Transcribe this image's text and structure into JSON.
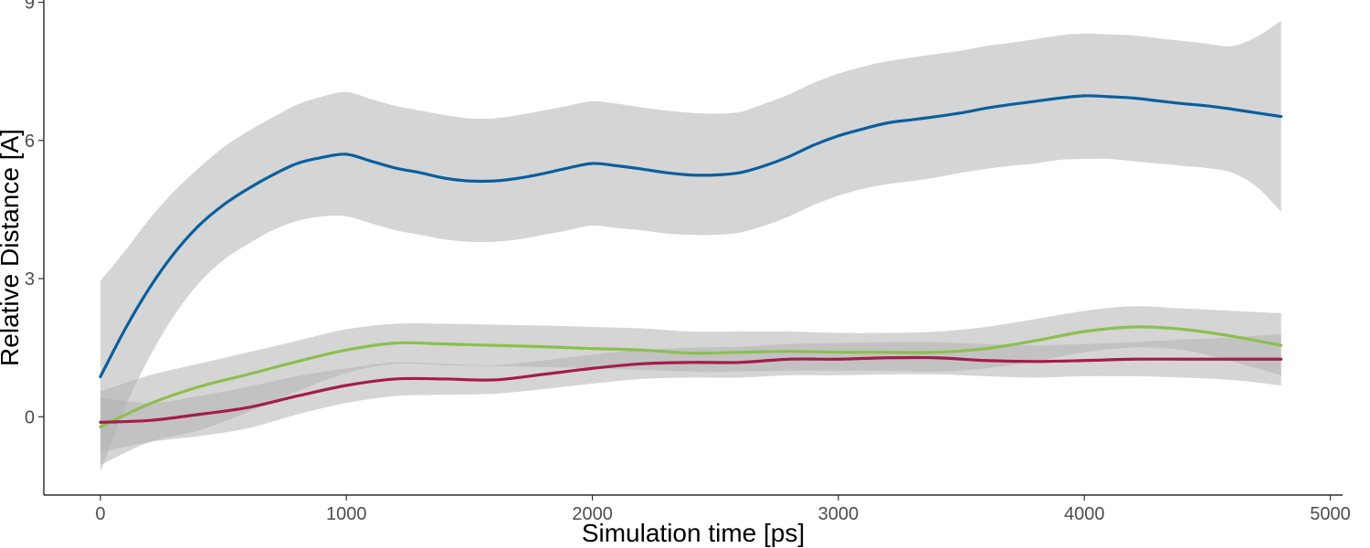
{
  "chart_data": {
    "type": "line",
    "title": "",
    "xlabel": "Simulation time [ps]",
    "ylabel": "Relative Distance [A]",
    "xlim": [
      -230,
      5050
    ],
    "ylim": [
      -1.7,
      9.05
    ],
    "x_ticks": [
      0,
      1000,
      2000,
      3000,
      4000,
      5000
    ],
    "y_ticks": [
      0,
      3,
      6,
      9
    ],
    "x_tick_labels": [
      "0",
      "1000",
      "2000",
      "3000",
      "4000",
      "5000"
    ],
    "y_tick_labels": [
      "0",
      "3",
      "6",
      "9"
    ],
    "grid": false,
    "legend": "none",
    "band_color": "#b3b3b3",
    "series": [
      {
        "color": "#0a5f9e",
        "x": [
          0,
          100,
          200,
          300,
          400,
          500,
          600,
          700,
          800,
          900,
          1000,
          1100,
          1200,
          1300,
          1400,
          1500,
          1600,
          1700,
          1800,
          1900,
          2000,
          2100,
          2200,
          2300,
          2400,
          2500,
          2600,
          2700,
          2800,
          2900,
          3000,
          3100,
          3200,
          3300,
          3400,
          3500,
          3600,
          3700,
          3800,
          3900,
          4000,
          4100,
          4200,
          4300,
          4400,
          4500,
          4600,
          4700,
          4800
        ],
        "y": [
          0.87,
          1.9,
          2.8,
          3.55,
          4.15,
          4.6,
          4.95,
          5.25,
          5.5,
          5.63,
          5.7,
          5.55,
          5.4,
          5.3,
          5.18,
          5.12,
          5.12,
          5.18,
          5.28,
          5.4,
          5.5,
          5.45,
          5.38,
          5.3,
          5.25,
          5.25,
          5.3,
          5.45,
          5.65,
          5.9,
          6.1,
          6.25,
          6.38,
          6.45,
          6.52,
          6.6,
          6.7,
          6.78,
          6.85,
          6.92,
          6.97,
          6.95,
          6.92,
          6.86,
          6.8,
          6.75,
          6.68,
          6.6,
          6.52
        ],
        "lower": [
          -1.2,
          0.2,
          1.3,
          2.2,
          2.9,
          3.4,
          3.75,
          4.05,
          4.25,
          4.35,
          4.35,
          4.2,
          4.05,
          3.95,
          3.85,
          3.8,
          3.8,
          3.85,
          3.95,
          4.05,
          4.15,
          4.1,
          4.05,
          3.98,
          3.95,
          3.95,
          4.0,
          4.15,
          4.35,
          4.6,
          4.8,
          4.95,
          5.05,
          5.12,
          5.2,
          5.3,
          5.38,
          5.45,
          5.5,
          5.58,
          5.6,
          5.6,
          5.55,
          5.5,
          5.45,
          5.4,
          5.3,
          5.0,
          4.45
        ],
        "upper": [
          2.95,
          3.6,
          4.3,
          4.9,
          5.4,
          5.85,
          6.2,
          6.5,
          6.78,
          6.95,
          7.05,
          6.9,
          6.75,
          6.65,
          6.55,
          6.48,
          6.48,
          6.55,
          6.65,
          6.75,
          6.85,
          6.8,
          6.72,
          6.65,
          6.6,
          6.58,
          6.62,
          6.8,
          7.0,
          7.25,
          7.45,
          7.6,
          7.72,
          7.8,
          7.88,
          7.95,
          8.05,
          8.12,
          8.2,
          8.28,
          8.32,
          8.3,
          8.28,
          8.22,
          8.16,
          8.1,
          8.05,
          8.25,
          8.6
        ]
      },
      {
        "color": "#8cbf4e",
        "x": [
          0,
          200,
          400,
          600,
          800,
          1000,
          1200,
          1400,
          1600,
          1800,
          2000,
          2200,
          2400,
          2600,
          2800,
          3000,
          3200,
          3400,
          3600,
          3800,
          4000,
          4200,
          4400,
          4600,
          4800
        ],
        "y": [
          -0.22,
          0.28,
          0.65,
          0.92,
          1.2,
          1.45,
          1.6,
          1.58,
          1.55,
          1.52,
          1.48,
          1.45,
          1.38,
          1.4,
          1.42,
          1.4,
          1.4,
          1.4,
          1.48,
          1.65,
          1.85,
          1.95,
          1.9,
          1.75,
          1.55
        ],
        "lower": [
          -1.05,
          -0.55,
          -0.3,
          0.1,
          0.55,
          0.95,
          1.15,
          1.12,
          1.1,
          1.08,
          1.05,
          1.02,
          0.98,
          0.98,
          1.0,
          1.0,
          1.0,
          0.98,
          1.05,
          1.2,
          1.4,
          1.5,
          1.45,
          1.2,
          0.9
        ],
        "upper": [
          0.55,
          0.9,
          1.15,
          1.4,
          1.65,
          1.9,
          2.02,
          2.02,
          2.0,
          1.98,
          1.95,
          1.92,
          1.85,
          1.85,
          1.85,
          1.82,
          1.82,
          1.85,
          1.95,
          2.12,
          2.3,
          2.4,
          2.35,
          2.3,
          2.25
        ]
      },
      {
        "color": "#a51c4c",
        "x": [
          0,
          200,
          400,
          600,
          800,
          1000,
          1200,
          1400,
          1600,
          1800,
          2000,
          2200,
          2400,
          2600,
          2800,
          3000,
          3200,
          3400,
          3600,
          3800,
          4000,
          4200,
          4400,
          4600,
          4800
        ],
        "y": [
          -0.12,
          -0.08,
          0.05,
          0.2,
          0.45,
          0.68,
          0.82,
          0.82,
          0.8,
          0.92,
          1.05,
          1.15,
          1.18,
          1.18,
          1.25,
          1.25,
          1.28,
          1.28,
          1.22,
          1.2,
          1.22,
          1.25,
          1.25,
          1.25,
          1.25
        ],
        "lower": [
          -0.78,
          -0.55,
          -0.42,
          -0.25,
          0.05,
          0.3,
          0.45,
          0.48,
          0.5,
          0.6,
          0.72,
          0.82,
          0.85,
          0.85,
          0.9,
          0.9,
          0.92,
          0.92,
          0.88,
          0.85,
          0.88,
          0.88,
          0.85,
          0.8,
          0.68
        ],
        "upper": [
          0.42,
          0.3,
          0.45,
          0.65,
          0.88,
          1.05,
          1.18,
          1.15,
          1.12,
          1.22,
          1.35,
          1.45,
          1.5,
          1.52,
          1.58,
          1.6,
          1.62,
          1.62,
          1.58,
          1.55,
          1.58,
          1.62,
          1.68,
          1.72,
          1.8
        ]
      }
    ]
  }
}
